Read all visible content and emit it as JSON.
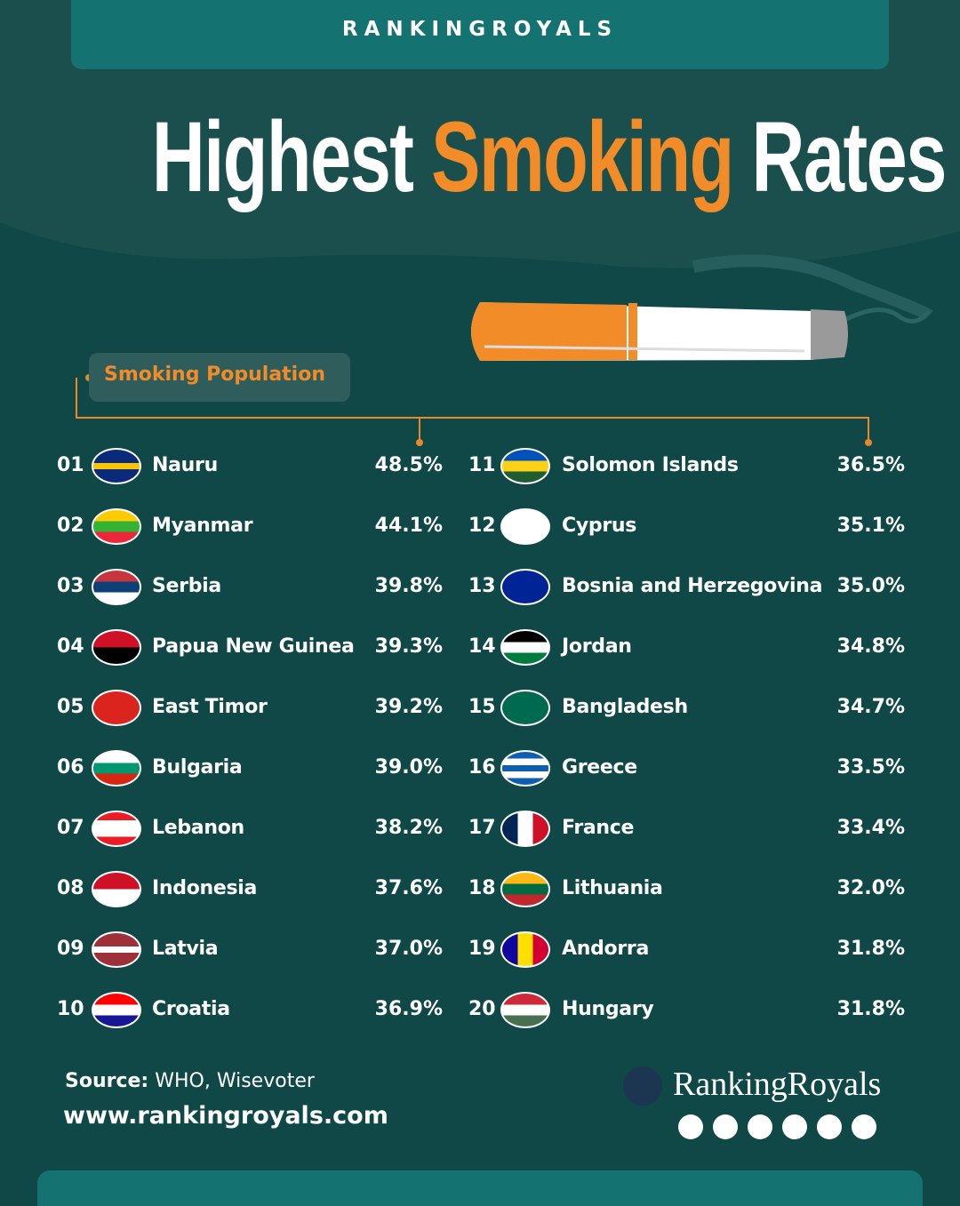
{
  "header": {
    "brand": "RANKINGROYALS",
    "title": [
      "Highest",
      "Smoking",
      "Rates"
    ]
  },
  "legend": "Smoking Population",
  "rows": [
    {
      "rank": "01",
      "country": "Nauru",
      "value": "48.5%"
    },
    {
      "rank": "02",
      "country": "Myanmar",
      "value": "44.1%"
    },
    {
      "rank": "03",
      "country": "Serbia",
      "value": "39.8%"
    },
    {
      "rank": "04",
      "country": "Papua New Guinea",
      "value": "39.3%"
    },
    {
      "rank": "05",
      "country": "East Timor",
      "value": "39.2%"
    },
    {
      "rank": "06",
      "country": "Bulgaria",
      "value": "39.0%"
    },
    {
      "rank": "07",
      "country": "Lebanon",
      "value": "38.2%"
    },
    {
      "rank": "08",
      "country": "Indonesia",
      "value": "37.6%"
    },
    {
      "rank": "09",
      "country": "Latvia",
      "value": "37.0%"
    },
    {
      "rank": "10",
      "country": "Croatia",
      "value": "36.9%"
    },
    {
      "rank": "11",
      "country": "Solomon Islands",
      "value": "36.5%"
    },
    {
      "rank": "12",
      "country": "Cyprus",
      "value": "35.1%"
    },
    {
      "rank": "13",
      "country": "Bosnia and Herzegovina",
      "value": "35.0%"
    },
    {
      "rank": "14",
      "country": "Jordan",
      "value": "34.8%"
    },
    {
      "rank": "15",
      "country": "Bangladesh",
      "value": "34.7%"
    },
    {
      "rank": "16",
      "country": "Greece",
      "value": "33.5%"
    },
    {
      "rank": "17",
      "country": "France",
      "value": "33.4%"
    },
    {
      "rank": "18",
      "country": "Lithuania",
      "value": "32.0%"
    },
    {
      "rank": "19",
      "country": "Andorra",
      "value": "31.8%"
    },
    {
      "rank": "20",
      "country": "Hungary",
      "value": "31.8%"
    }
  ],
  "footer": {
    "source_label": "Source:",
    "source": "WHO, Wisevoter",
    "url": "www.rankingroyals.com",
    "logo": "RankingRoyals"
  }
}
